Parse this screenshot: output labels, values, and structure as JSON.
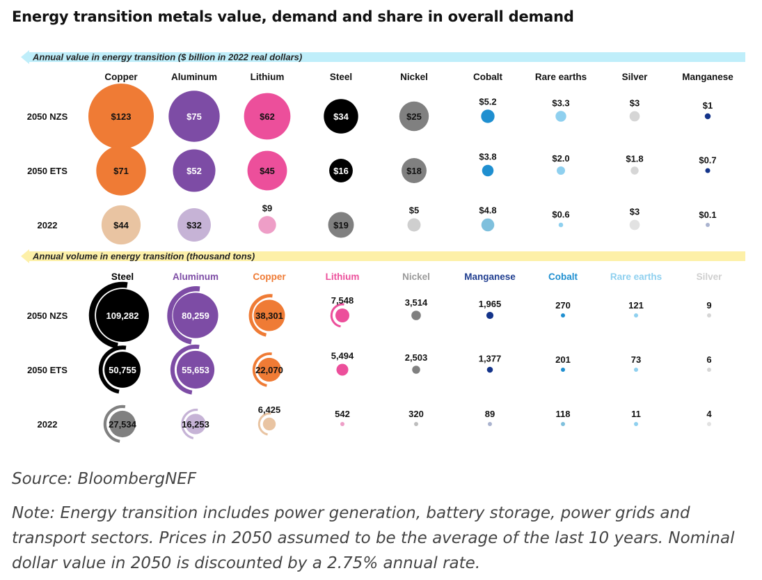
{
  "page": {
    "title": "Energy transition metals value, demand and share in overall demand",
    "source": "Source: BloombergNEF",
    "note": "Note: Energy transition includes power generation, battery storage, power grids and transport sectors. Prices in 2050 assumed to be the average of the last 10 years. Nominal dollar value in 2050 is discounted by a 2.75% annual rate."
  },
  "chart_data": [
    {
      "type": "bubble",
      "banner": "Annual value in energy transition ($ billion in 2022 real dollars)",
      "banner_color": "#bfeefa",
      "rows": [
        "2050 NZS",
        "2050 ETS",
        "2022"
      ],
      "columns": [
        {
          "name": "Copper",
          "color": "#ef7b35",
          "color_2022": "#e9c4a2",
          "values": [
            123,
            71,
            44
          ],
          "labels": [
            "$123",
            "$71",
            "$44"
          ]
        },
        {
          "name": "Aluminum",
          "color": "#7d4ca5",
          "color_2022": "#c6b3d6",
          "values": [
            75,
            52,
            32
          ],
          "labels": [
            "$75",
            "$52",
            "$32"
          ]
        },
        {
          "name": "Lithium",
          "color": "#ec4f9b",
          "color_2022": "#ee9ec7",
          "values": [
            62,
            45,
            9
          ],
          "labels": [
            "$62",
            "$45",
            "$9"
          ]
        },
        {
          "name": "Steel",
          "color": "#000000",
          "color_2022": "#808080",
          "values": [
            34,
            16,
            19
          ],
          "labels": [
            "$34",
            "$16",
            "$19"
          ]
        },
        {
          "name": "Nickel",
          "color": "#808080",
          "color_2022": "#cfcfcf",
          "values": [
            25,
            18,
            5
          ],
          "labels": [
            "$25",
            "$18",
            "$5"
          ]
        },
        {
          "name": "Cobalt",
          "color": "#1f8fd0",
          "color_2022": "#7fc0dd",
          "values": [
            5.2,
            3.8,
            4.8
          ],
          "labels": [
            "$5.2",
            "$3.8",
            "$4.8"
          ]
        },
        {
          "name": "Rare earths",
          "color": "#8fd0ef",
          "color_2022": "#8fd0ef",
          "values": [
            3.3,
            2.0,
            0.6
          ],
          "labels": [
            "$3.3",
            "$2.0",
            "$0.6"
          ]
        },
        {
          "name": "Silver",
          "color": "#d6d6d6",
          "color_2022": "#e2e2e2",
          "values": [
            3,
            1.8,
            3
          ],
          "labels": [
            "$3",
            "$1.8",
            "$3"
          ]
        },
        {
          "name": "Manganese",
          "color": "#14348a",
          "color_2022": "#aab3cf",
          "values": [
            1,
            0.7,
            0.1
          ],
          "labels": [
            "$1",
            "$0.7",
            "$0.1"
          ]
        }
      ]
    },
    {
      "type": "bubble",
      "banner": "Annual volume in energy transition (thousand tons)",
      "banner_color": "#fdf0a8",
      "rows": [
        "2050 NZS",
        "2050 ETS",
        "2022"
      ],
      "columns": [
        {
          "name": "Steel",
          "color": "#000000",
          "color_2022": "#808080",
          "header_color": "#000000",
          "values": [
            109282,
            50755,
            27534
          ],
          "labels": [
            "109,282",
            "50,755",
            "27,534"
          ]
        },
        {
          "name": "Aluminum",
          "color": "#7d4ca5",
          "color_2022": "#c6b3d6",
          "header_color": "#7d4ca5",
          "values": [
            80259,
            55653,
            16253
          ],
          "labels": [
            "80,259",
            "55,653",
            "16,253"
          ]
        },
        {
          "name": "Copper",
          "color": "#ef7b35",
          "color_2022": "#e9c4a2",
          "header_color": "#ef7b35",
          "values": [
            38301,
            22070,
            6425
          ],
          "labels": [
            "38,301",
            "22,070",
            "6,425"
          ]
        },
        {
          "name": "Lithium",
          "color": "#ec4f9b",
          "color_2022": "#ee9ec7",
          "header_color": "#ec4f9b",
          "values": [
            7548,
            5494,
            542
          ],
          "labels": [
            "7,548",
            "5,494",
            "542"
          ]
        },
        {
          "name": "Nickel",
          "color": "#808080",
          "color_2022": "#bdbdbd",
          "header_color": "#9a9a9a",
          "values": [
            3514,
            2503,
            320
          ],
          "labels": [
            "3,514",
            "2,503",
            "320"
          ]
        },
        {
          "name": "Manganese",
          "color": "#14348a",
          "color_2022": "#aab3cf",
          "header_color": "#1f3d8f",
          "values": [
            1965,
            1377,
            89
          ],
          "labels": [
            "1,965",
            "1,377",
            "89"
          ]
        },
        {
          "name": "Cobalt",
          "color": "#1f8fd0",
          "color_2022": "#7fc0dd",
          "header_color": "#1f8fd0",
          "values": [
            270,
            201,
            118
          ],
          "labels": [
            "270",
            "201",
            "118"
          ]
        },
        {
          "name": "Rare earths",
          "color": "#8fd0ef",
          "color_2022": "#8fd0ef",
          "header_color": "#8fd0ef",
          "values": [
            121,
            73,
            11
          ],
          "labels": [
            "121",
            "73",
            "11"
          ]
        },
        {
          "name": "Silver",
          "color": "#d6d6d6",
          "color_2022": "#e2e2e2",
          "header_color": "#cfcfcf",
          "values": [
            9,
            6,
            4
          ],
          "labels": [
            "9",
            "6",
            "4"
          ]
        }
      ]
    }
  ]
}
